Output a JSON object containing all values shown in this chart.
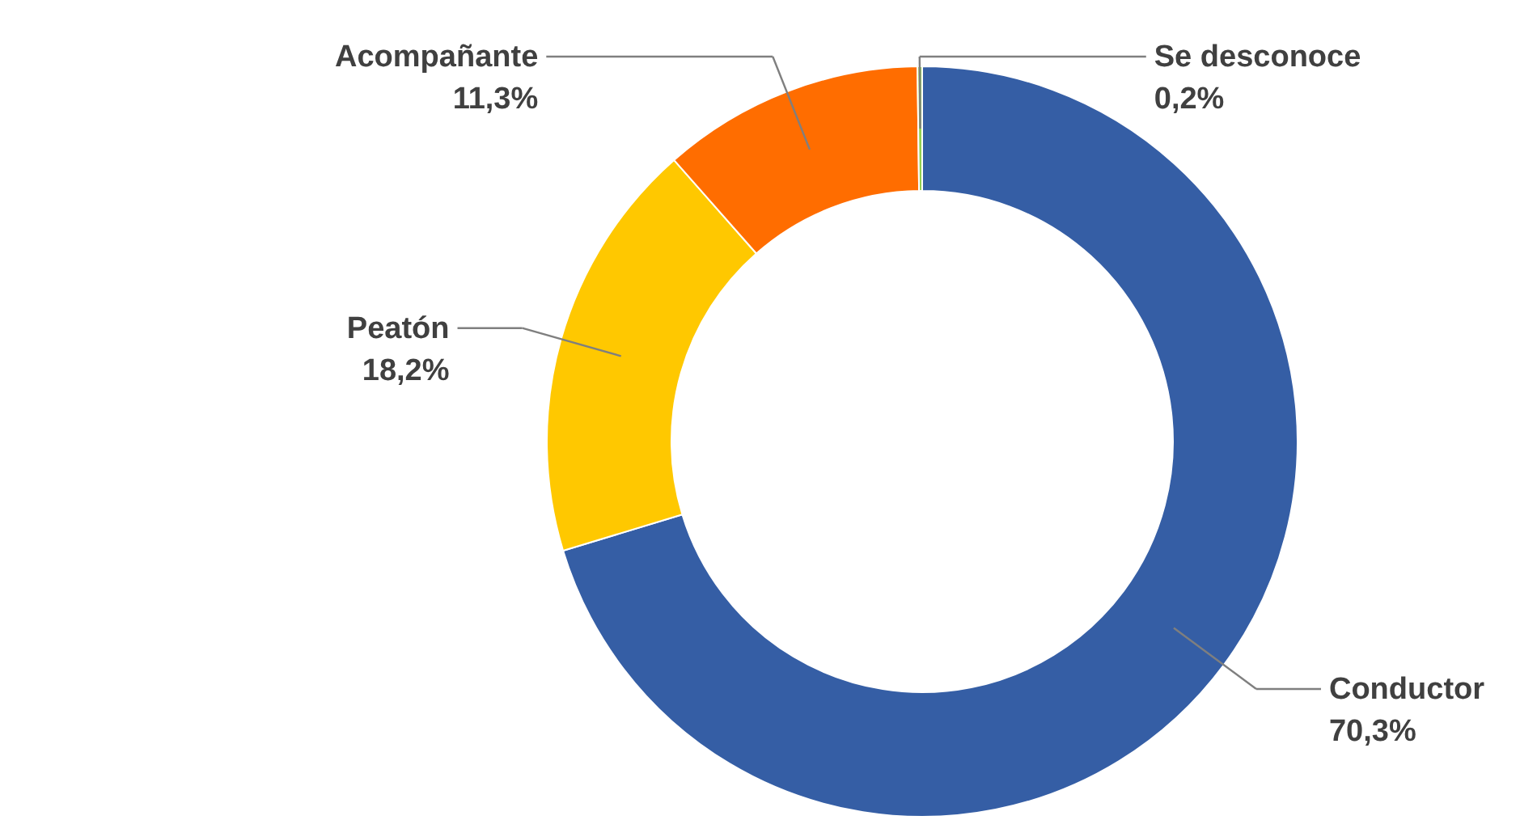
{
  "chart_data": {
    "type": "donut",
    "categories": [
      "Conductor",
      "Peatón",
      "Acompañante",
      "Se desconoce"
    ],
    "values": [
      70.3,
      18.2,
      11.3,
      0.2
    ],
    "colors": [
      "#355ea5",
      "#ffc800",
      "#ff6d00",
      "#92d050"
    ],
    "value_labels": [
      "70,3%",
      "18,2%",
      "11,3%",
      "0,2%"
    ]
  }
}
